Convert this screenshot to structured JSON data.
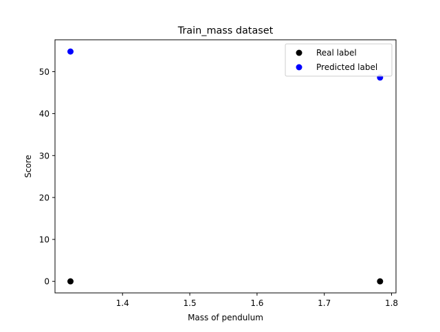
{
  "chart_data": {
    "type": "scatter",
    "title": "Train_mass dataset",
    "xlabel": "Mass of pendulum",
    "ylabel": "Score",
    "xlim": [
      1.2996,
      1.8066
    ],
    "ylim": [
      -2.75,
      57.6
    ],
    "xticks": [
      1.4,
      1.5,
      1.6,
      1.7,
      1.8
    ],
    "xtick_labels": [
      "1.4",
      "1.5",
      "1.6",
      "1.7",
      "1.8"
    ],
    "yticks": [
      0,
      10,
      20,
      30,
      40,
      50
    ],
    "ytick_labels": [
      "0",
      "10",
      "20",
      "30",
      "40",
      "50"
    ],
    "grid": false,
    "legend_position": "top-right",
    "series": [
      {
        "name": "Real label",
        "color": "#000000",
        "points": [
          {
            "x": 1.3226,
            "y": 0
          },
          {
            "x": 1.7829,
            "y": 0
          }
        ]
      },
      {
        "name": "Predicted label",
        "color": "#0000ff",
        "points": [
          {
            "x": 1.3226,
            "y": 54.8
          },
          {
            "x": 1.7829,
            "y": 48.6
          }
        ]
      }
    ]
  }
}
